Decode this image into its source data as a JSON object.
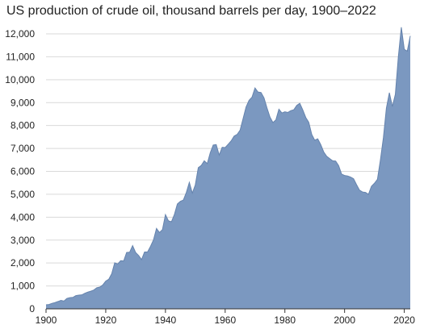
{
  "chart_data": {
    "type": "area",
    "title": "US production of crude oil, thousand barrels per day, 1900–2022",
    "xlabel": "",
    "ylabel": "",
    "xlim": [
      1900,
      2022
    ],
    "ylim": [
      0,
      12000
    ],
    "grid": true,
    "legend": "none",
    "xticks": [
      1900,
      1920,
      1940,
      1960,
      1980,
      2000,
      2020
    ],
    "xtick_labels": [
      "1900",
      "1920",
      "1940",
      "1960",
      "1980",
      "2000",
      "2020"
    ],
    "yticks": [
      0,
      1000,
      2000,
      3000,
      4000,
      5000,
      6000,
      7000,
      8000,
      9000,
      10000,
      11000,
      12000
    ],
    "ytick_labels": [
      "0",
      "1,000",
      "2,000",
      "3,000",
      "4,000",
      "5,000",
      "6,000",
      "7,000",
      "8,000",
      "9,000",
      "10,000",
      "11,000",
      "12,000"
    ],
    "colors": {
      "fill": "#7b98c0",
      "stroke": "#6583ad",
      "grid": "#d9d9d9"
    },
    "series": [
      {
        "x": [
          1900,
          1901,
          1902,
          1903,
          1904,
          1905,
          1906,
          1907,
          1908,
          1909,
          1910,
          1911,
          1912,
          1913,
          1914,
          1915,
          1916,
          1917,
          1918,
          1919,
          1920,
          1921,
          1922,
          1923,
          1924,
          1925,
          1926,
          1927,
          1928,
          1929,
          1930,
          1931,
          1932,
          1933,
          1934,
          1935,
          1936,
          1937,
          1938,
          1939,
          1940,
          1941,
          1942,
          1943,
          1944,
          1945,
          1946,
          1947,
          1948,
          1949,
          1950,
          1951,
          1952,
          1953,
          1954,
          1955,
          1956,
          1957,
          1958,
          1959,
          1960,
          1961,
          1962,
          1963,
          1964,
          1965,
          1966,
          1967,
          1968,
          1969,
          1970,
          1971,
          1972,
          1973,
          1974,
          1975,
          1976,
          1977,
          1978,
          1979,
          1980,
          1981,
          1982,
          1983,
          1984,
          1985,
          1986,
          1987,
          1988,
          1989,
          1990,
          1991,
          1992,
          1993,
          1994,
          1995,
          1996,
          1997,
          1998,
          1999,
          2000,
          2001,
          2002,
          2003,
          2004,
          2005,
          2006,
          2007,
          2008,
          2009,
          2010,
          2011,
          2012,
          2013,
          2014,
          2015,
          2016,
          2017,
          2018,
          2019,
          2020,
          2021,
          2022
        ],
        "values": [
          175,
          190,
          240,
          275,
          320,
          370,
          340,
          455,
          490,
          500,
          575,
          600,
          610,
          680,
          730,
          770,
          820,
          920,
          950,
          1040,
          1210,
          1290,
          1530,
          2010,
          1960,
          2100,
          2090,
          2460,
          2470,
          2760,
          2460,
          2330,
          2150,
          2480,
          2480,
          2730,
          3010,
          3510,
          3330,
          3460,
          4110,
          3840,
          3800,
          4120,
          4580,
          4690,
          4750,
          5080,
          5520,
          5050,
          5410,
          6160,
          6260,
          6460,
          6340,
          6810,
          7150,
          7170,
          6710,
          7050,
          7040,
          7180,
          7330,
          7540,
          7610,
          7800,
          8300,
          8810,
          9100,
          9240,
          9640,
          9460,
          9440,
          9210,
          8770,
          8370,
          8130,
          8250,
          8710,
          8550,
          8600,
          8570,
          8650,
          8690,
          8880,
          8970,
          8680,
          8350,
          8140,
          7610,
          7360,
          7420,
          7170,
          6850,
          6660,
          6560,
          6460,
          6450,
          6250,
          5880,
          5820,
          5800,
          5750,
          5680,
          5420,
          5180,
          5100,
          5080,
          5000,
          5350,
          5480,
          5650,
          6500,
          7470,
          8760,
          9430,
          8830,
          9360,
          10990,
          12290,
          11320,
          11250,
          11910
        ]
      }
    ]
  }
}
